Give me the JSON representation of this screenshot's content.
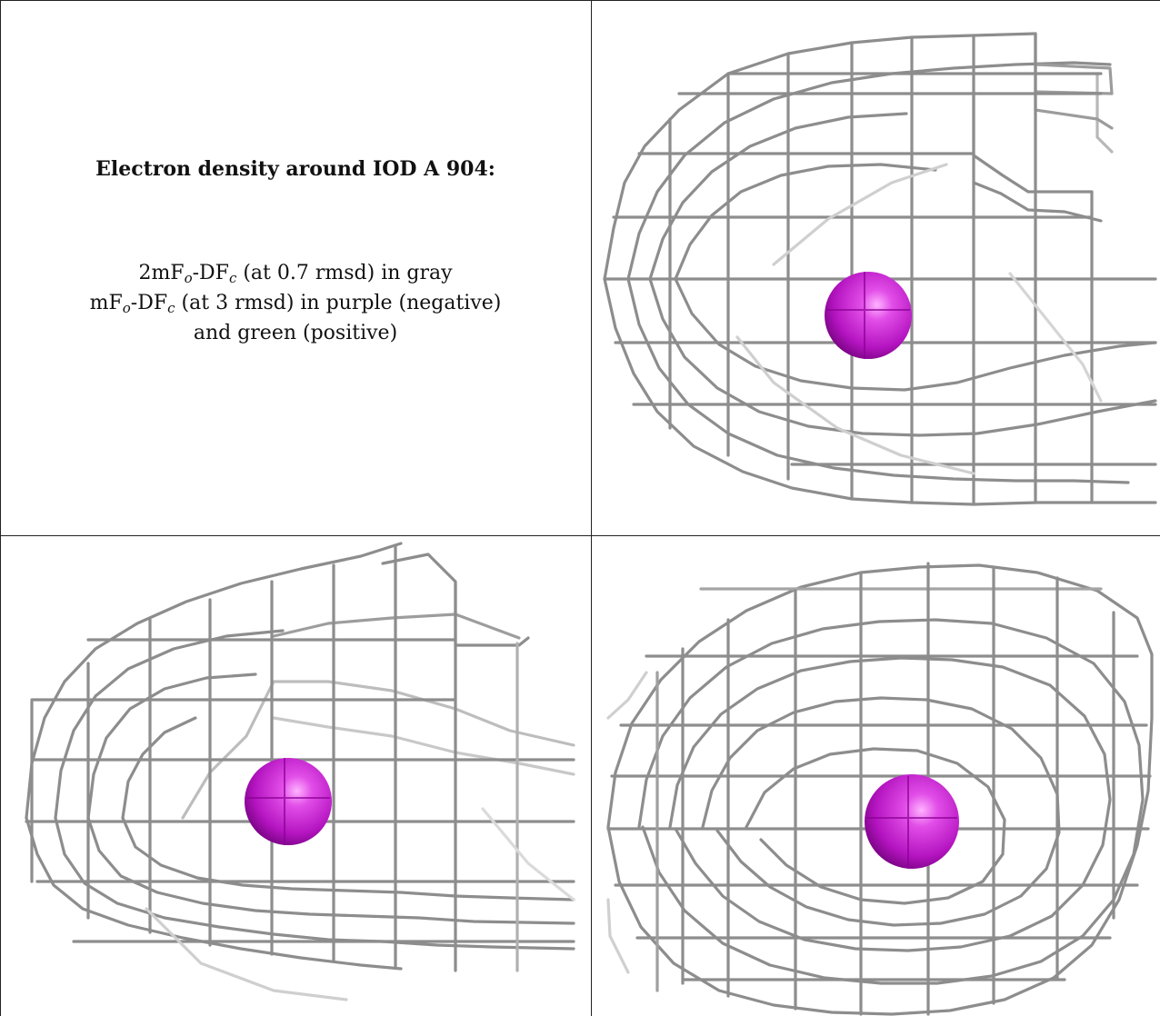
{
  "caption": {
    "title": "Electron density around IOD A 904:",
    "line1": {
      "a": "2mF",
      "a_sub": "o",
      "b": "-DF",
      "b_sub": "c",
      "c": " (at 0.7 rmsd) in gray"
    },
    "line2": {
      "a": "mF",
      "a_sub": "o",
      "b": "-DF",
      "b_sub": "c",
      "c": " (at 3 rmsd) in purple (negative)"
    },
    "line3": "and green (positive)"
  },
  "colors": {
    "mesh": "#8a8a8a",
    "atom": "#c21ad0",
    "border": "#222222"
  },
  "views": [
    {
      "name": "view-top-right"
    },
    {
      "name": "view-bottom-left"
    },
    {
      "name": "view-bottom-right"
    }
  ]
}
